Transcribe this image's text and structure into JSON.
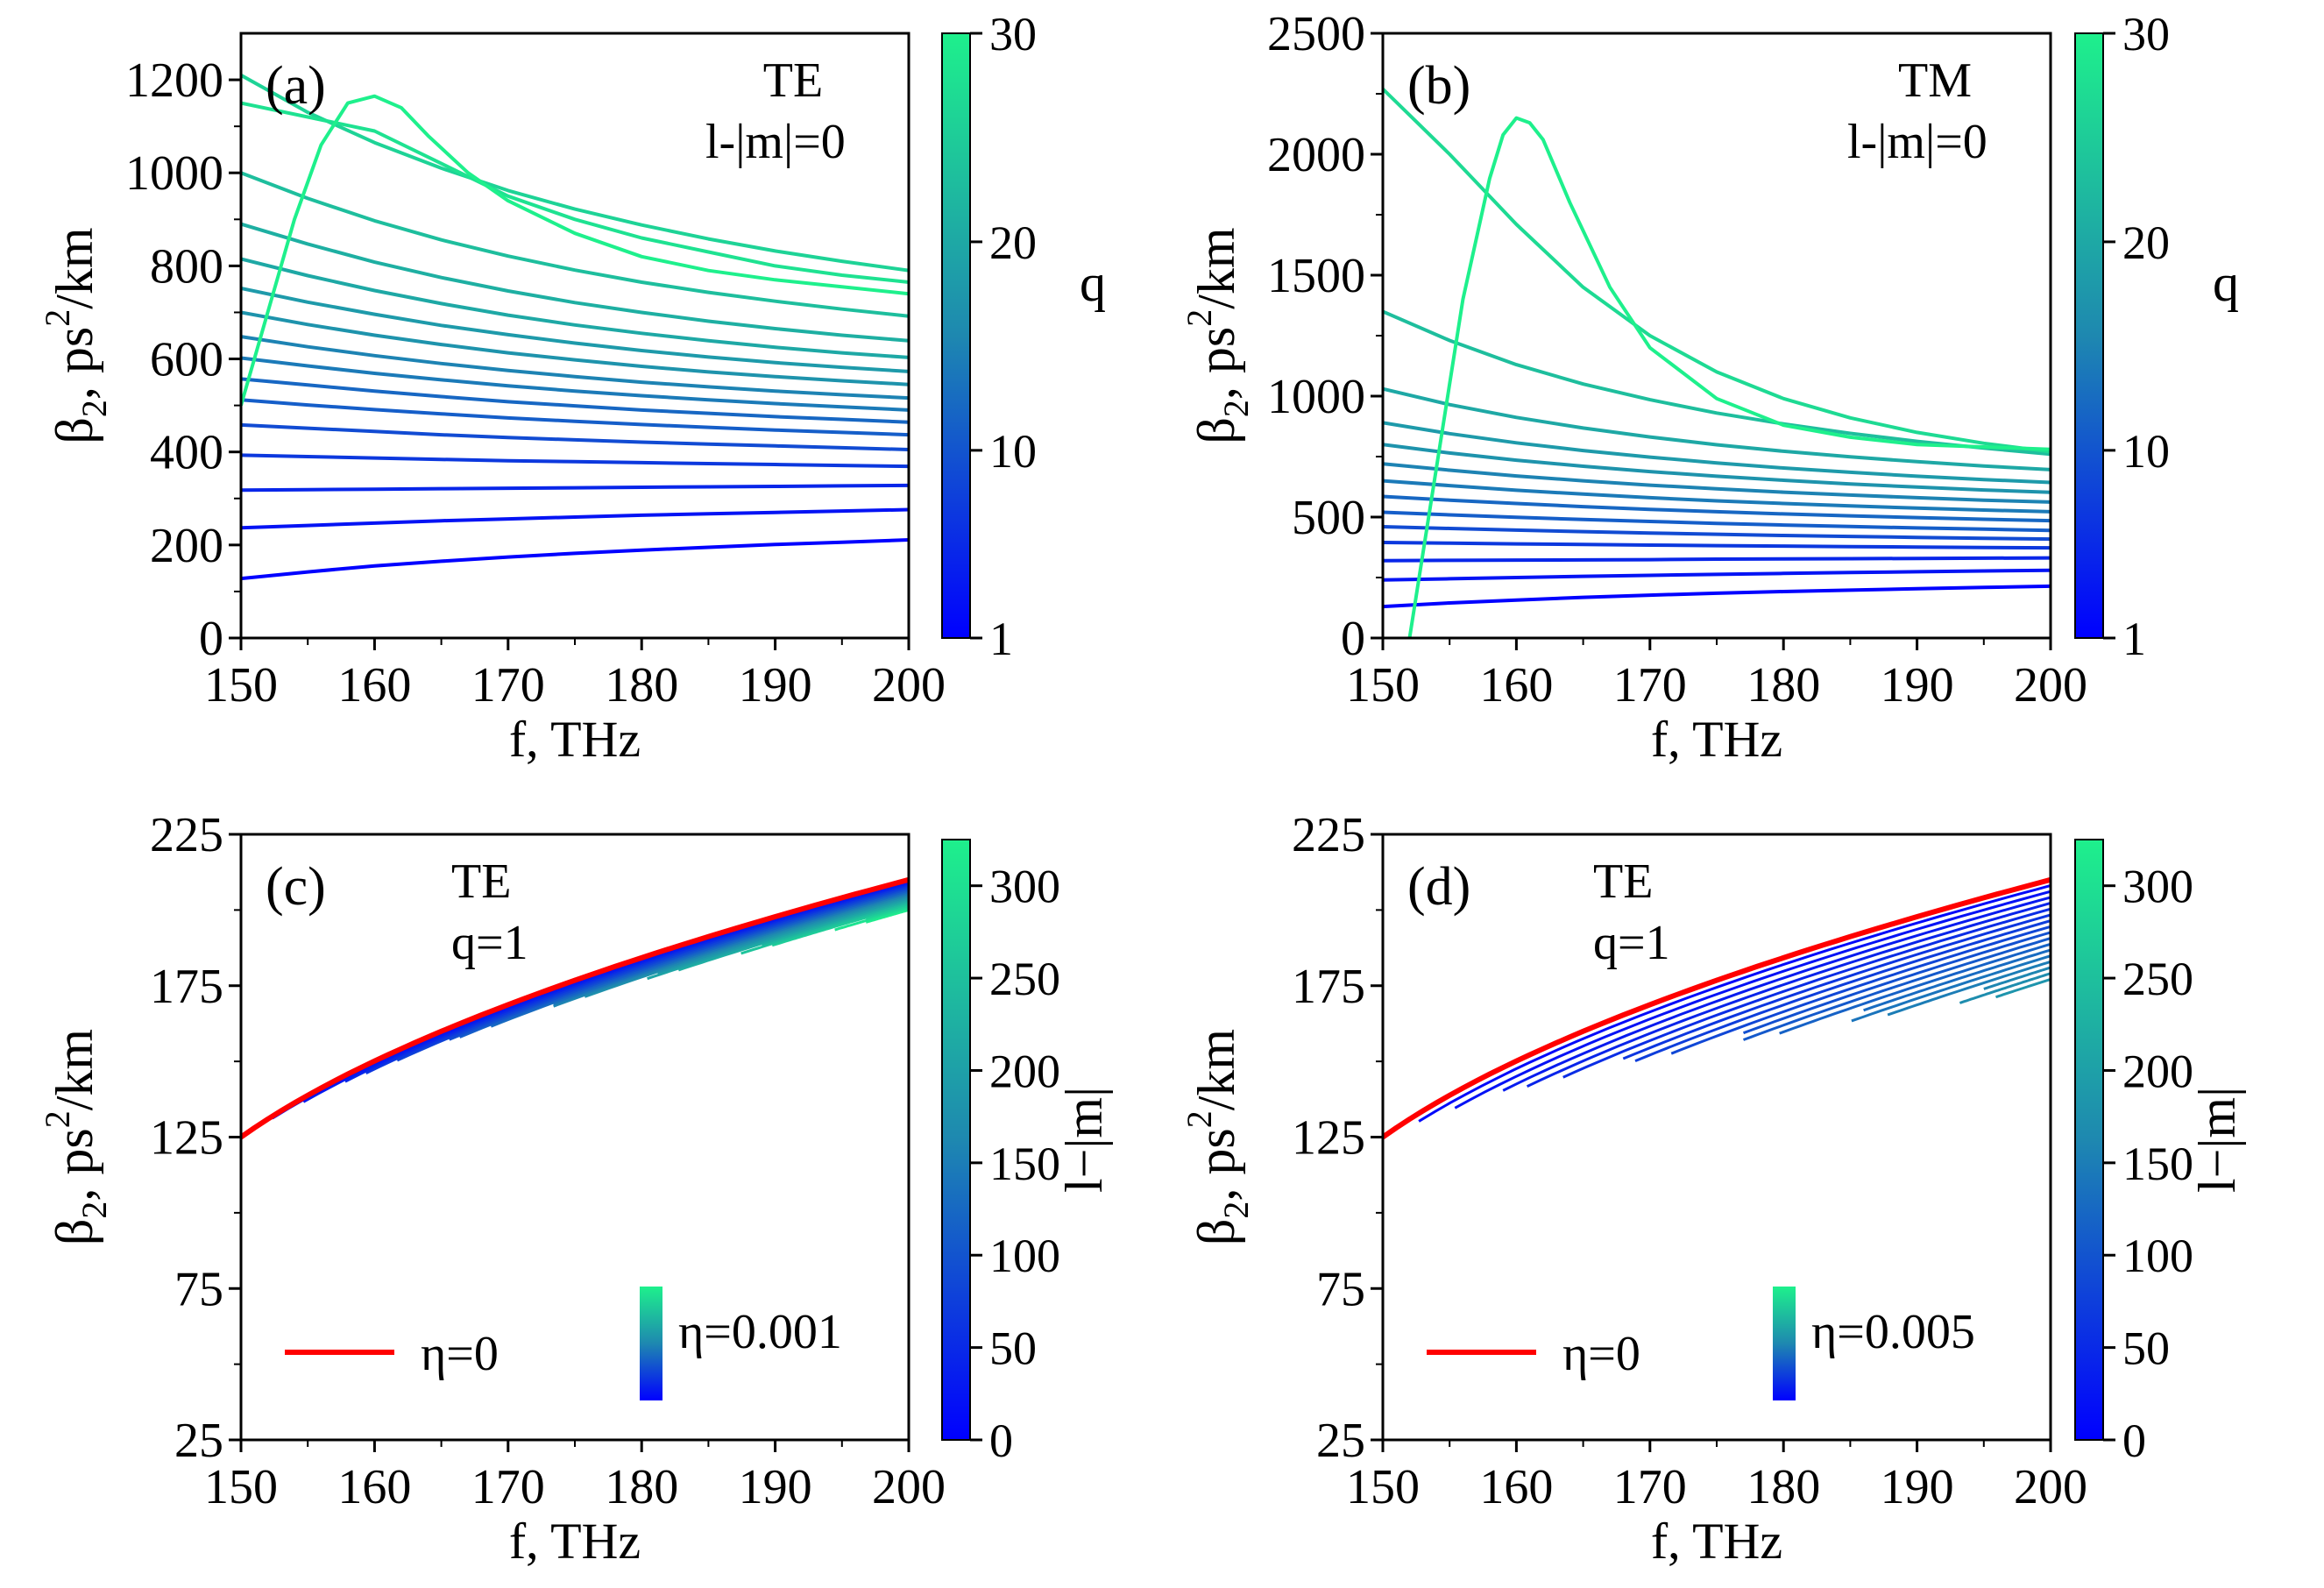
{
  "chart_data": [
    {
      "panel": "(a)",
      "type": "line",
      "title": "",
      "annotation_lines": [
        "TE",
        "l-|m|=0"
      ],
      "xlabel": "f, THz",
      "ylabel_main": "β",
      "ylabel_sub": "2",
      "ylabel_rest": ", ps",
      "ylabel_sup": "2",
      "ylabel_tail": "/km",
      "xlim": [
        150,
        200
      ],
      "ylim": [
        0,
        1300
      ],
      "x_ticks": [
        "150",
        "160",
        "170",
        "180",
        "190",
        "200"
      ],
      "y_ticks": [
        "0",
        "200",
        "400",
        "600",
        "800",
        "1000",
        "1200"
      ],
      "y_tick_values": [
        0,
        200,
        400,
        600,
        800,
        1000,
        1200
      ],
      "colorbar": {
        "label": "q",
        "range": [
          1,
          30
        ],
        "tick_labels": [
          "1",
          "10",
          "20",
          "30"
        ],
        "tick_values": [
          1,
          10,
          20,
          30
        ]
      },
      "x": [
        150,
        155,
        160,
        165,
        170,
        175,
        180,
        185,
        190,
        195,
        200
      ],
      "series": [
        {
          "name": "q=1",
          "c": 1,
          "values": [
            128,
            142,
            155,
            165,
            174,
            182,
            189,
            195,
            201,
            206,
            211
          ]
        },
        {
          "name": "q=3",
          "c": 3,
          "values": [
            237,
            242,
            247,
            252,
            256,
            260,
            264,
            267,
            270,
            273,
            276
          ]
        },
        {
          "name": "q=5",
          "c": 5,
          "values": [
            318,
            319,
            320,
            321,
            322,
            323,
            324,
            325,
            326,
            327,
            328
          ]
        },
        {
          "name": "q=7",
          "c": 7,
          "values": [
            393,
            390,
            387,
            384,
            381,
            379,
            377,
            375,
            373,
            371,
            369
          ]
        },
        {
          "name": "q=9",
          "c": 9,
          "values": [
            458,
            451,
            444,
            437,
            431,
            426,
            421,
            417,
            413,
            409,
            405
          ]
        },
        {
          "name": "q=11",
          "c": 11,
          "values": [
            512,
            501,
            491,
            482,
            473,
            466,
            459,
            453,
            447,
            442,
            437
          ]
        },
        {
          "name": "q=12",
          "c": 12,
          "values": [
            557,
            544,
            531,
            519,
            508,
            499,
            490,
            483,
            476,
            470,
            464
          ]
        },
        {
          "name": "q=14",
          "c": 14,
          "values": [
            602,
            585,
            569,
            555,
            542,
            531,
            521,
            512,
            504,
            497,
            490
          ]
        },
        {
          "name": "q=15",
          "c": 15,
          "values": [
            648,
            626,
            607,
            590,
            575,
            562,
            550,
            540,
            531,
            523,
            516
          ]
        },
        {
          "name": "q=17",
          "c": 17,
          "values": [
            700,
            674,
            651,
            631,
            613,
            598,
            584,
            572,
            562,
            553,
            545
          ]
        },
        {
          "name": "q=18",
          "c": 18,
          "values": [
            752,
            722,
            696,
            672,
            652,
            634,
            618,
            604,
            592,
            582,
            573
          ]
        },
        {
          "name": "q=20",
          "c": 20,
          "values": [
            815,
            779,
            747,
            719,
            694,
            673,
            655,
            639,
            625,
            613,
            603
          ]
        },
        {
          "name": "q=21",
          "c": 21,
          "values": [
            890,
            847,
            808,
            775,
            746,
            721,
            700,
            681,
            665,
            651,
            639
          ]
        },
        {
          "name": "q=23",
          "c": 23,
          "values": [
            1000,
            945,
            897,
            856,
            821,
            791,
            765,
            743,
            724,
            707,
            692
          ]
        },
        {
          "name": "q=26",
          "c": 26,
          "values": [
            1210,
            1130,
            1065,
            1010,
            962,
            922,
            888,
            858,
            832,
            810,
            790
          ]
        },
        {
          "name": "q=28",
          "c": 28,
          "values": [
            1150,
            1120,
            1090,
            1020,
            950,
            900,
            860,
            830,
            800,
            780,
            765
          ]
        },
        {
          "name": "q=30",
          "c": 30,
          "x": [
            150,
            152,
            154,
            156,
            158,
            160,
            162,
            164,
            167,
            170,
            175,
            180,
            185,
            190,
            195,
            200
          ],
          "values": [
            500,
            700,
            900,
            1060,
            1150,
            1165,
            1140,
            1080,
            1000,
            940,
            870,
            820,
            790,
            770,
            755,
            740
          ]
        }
      ]
    },
    {
      "panel": "(b)",
      "type": "line",
      "title": "",
      "annotation_lines": [
        "TM",
        "l-|m|=0"
      ],
      "xlabel": "f, THz",
      "ylabel_main": "β",
      "ylabel_sub": "2",
      "ylabel_rest": ", ps",
      "ylabel_sup": "2",
      "ylabel_tail": "/km",
      "xlim": [
        150,
        200
      ],
      "ylim": [
        0,
        2500
      ],
      "x_ticks": [
        "150",
        "160",
        "170",
        "180",
        "190",
        "200"
      ],
      "y_ticks": [
        "0",
        "500",
        "1000",
        "1500",
        "2000",
        "2500"
      ],
      "y_tick_values": [
        0,
        500,
        1000,
        1500,
        2000,
        2500
      ],
      "colorbar": {
        "label": "q",
        "range": [
          1,
          30
        ],
        "tick_labels": [
          "1",
          "10",
          "20",
          "30"
        ],
        "tick_values": [
          1,
          10,
          20,
          30
        ]
      },
      "x": [
        150,
        155,
        160,
        165,
        170,
        175,
        180,
        185,
        190,
        195,
        200
      ],
      "series": [
        {
          "name": "q=1",
          "c": 1,
          "values": [
            130,
            145,
            157,
            168,
            177,
            185,
            192,
            198,
            204,
            209,
            214
          ]
        },
        {
          "name": "q=3",
          "c": 3,
          "values": [
            240,
            245,
            250,
            255,
            259,
            263,
            267,
            271,
            274,
            277,
            280
          ]
        },
        {
          "name": "q=5",
          "c": 5,
          "values": [
            320,
            321,
            322,
            323,
            324,
            326,
            327,
            328,
            329,
            330,
            331
          ]
        },
        {
          "name": "q=7",
          "c": 7,
          "values": [
            395,
            392,
            389,
            387,
            384,
            382,
            380,
            378,
            376,
            374,
            373
          ]
        },
        {
          "name": "q=9",
          "c": 9,
          "values": [
            460,
            453,
            446,
            440,
            434,
            429,
            424,
            420,
            416,
            412,
            409
          ]
        },
        {
          "name": "q=11",
          "c": 11,
          "values": [
            520,
            509,
            499,
            490,
            482,
            474,
            467,
            461,
            455,
            450,
            445
          ]
        },
        {
          "name": "q=12",
          "c": 12,
          "values": [
            585,
            570,
            556,
            543,
            532,
            522,
            513,
            505,
            498,
            491,
            485
          ]
        },
        {
          "name": "q=14",
          "c": 14,
          "values": [
            650,
            630,
            611,
            595,
            580,
            567,
            556,
            546,
            537,
            529,
            522
          ]
        },
        {
          "name": "q=15",
          "c": 15,
          "values": [
            720,
            694,
            670,
            650,
            632,
            617,
            603,
            591,
            580,
            570,
            562
          ]
        },
        {
          "name": "q=17",
          "c": 17,
          "values": [
            800,
            765,
            735,
            710,
            688,
            669,
            652,
            637,
            624,
            612,
            602
          ]
        },
        {
          "name": "q=18",
          "c": 18,
          "values": [
            890,
            845,
            807,
            775,
            748,
            724,
            703,
            685,
            669,
            655,
            643
          ]
        },
        {
          "name": "q=20",
          "c": 20,
          "values": [
            1030,
            965,
            912,
            868,
            831,
            799,
            772,
            749,
            729,
            711,
            696
          ]
        },
        {
          "name": "q=23",
          "c": 23,
          "values": [
            1350,
            1230,
            1130,
            1050,
            985,
            930,
            885,
            846,
            813,
            785,
            760
          ]
        },
        {
          "name": "q=27",
          "c": 27,
          "values": [
            2270,
            2000,
            1710,
            1450,
            1250,
            1100,
            990,
            910,
            850,
            805,
            770
          ]
        },
        {
          "name": "q=30",
          "c": 30,
          "x": [
            152,
            154,
            156,
            158,
            159,
            160,
            161,
            162,
            164,
            167,
            170,
            175,
            180,
            185,
            190,
            195,
            200
          ],
          "values": [
            0,
            700,
            1400,
            1900,
            2080,
            2150,
            2130,
            2060,
            1800,
            1450,
            1200,
            990,
            880,
            830,
            800,
            790,
            780
          ]
        }
      ]
    },
    {
      "panel": "(c)",
      "type": "line",
      "title": "",
      "annotation_lines": [
        "TE",
        "q=1"
      ],
      "xlabel": "f, THz",
      "ylabel_main": "β",
      "ylabel_sub": "2",
      "ylabel_rest": ", ps",
      "ylabel_sup": "2",
      "ylabel_tail": "/km",
      "xlim": [
        150,
        200
      ],
      "ylim": [
        25,
        225
      ],
      "x_ticks": [
        "150",
        "160",
        "170",
        "180",
        "190",
        "200"
      ],
      "y_ticks": [
        "25",
        "75",
        "125",
        "175",
        "225"
      ],
      "y_tick_values": [
        25,
        75,
        125,
        175,
        225
      ],
      "colorbar": {
        "label": "l−|m|",
        "range": [
          0,
          325
        ],
        "tick_labels": [
          "0",
          "50",
          "100",
          "150",
          "200",
          "250",
          "300"
        ],
        "tick_values": [
          0,
          50,
          100,
          150,
          200,
          250,
          300
        ]
      },
      "legend": {
        "red_label": "η=0",
        "gradient_label": "η=0.001",
        "placement": "bottom"
      },
      "reference": {
        "name": "η=0",
        "color": "#ff0000",
        "f_start": 150,
        "start": 125,
        "end": 210
      },
      "family": {
        "count": 20,
        "eta": 0.001,
        "max_l_minus_m": 320,
        "start_drop": 14,
        "end_drop": 10
      }
    },
    {
      "panel": "(d)",
      "type": "line",
      "title": "",
      "annotation_lines": [
        "TE",
        "q=1"
      ],
      "xlabel": "f, THz",
      "ylabel_main": "β",
      "ylabel_sub": "2",
      "ylabel_rest": ", ps",
      "ylabel_sup": "2",
      "ylabel_tail": "/km",
      "xlim": [
        150,
        200
      ],
      "ylim": [
        25,
        225
      ],
      "x_ticks": [
        "150",
        "160",
        "170",
        "180",
        "190",
        "200"
      ],
      "y_ticks": [
        "25",
        "75",
        "125",
        "175",
        "225"
      ],
      "y_tick_values": [
        25,
        75,
        125,
        175,
        225
      ],
      "colorbar": {
        "label": "l−|m|",
        "range": [
          0,
          325
        ],
        "tick_labels": [
          "0",
          "50",
          "100",
          "150",
          "200",
          "250",
          "300"
        ],
        "tick_values": [
          0,
          50,
          100,
          150,
          200,
          250,
          300
        ]
      },
      "legend": {
        "red_label": "η=0",
        "gradient_label": "η=0.005",
        "placement": "bottom"
      },
      "reference": {
        "name": "η=0",
        "color": "#ff0000",
        "f_start": 150,
        "start": 125,
        "end": 210
      },
      "family": {
        "count": 30,
        "eta": 0.005,
        "max_l_minus_m": 320,
        "start_drop": 80,
        "end_drop": 58
      }
    }
  ],
  "colors": {
    "colormap_low": "#0000ff",
    "colormap_mid": "#1e88b0",
    "colormap_high": "#1ef08c",
    "reference_line": "#ff0000"
  }
}
